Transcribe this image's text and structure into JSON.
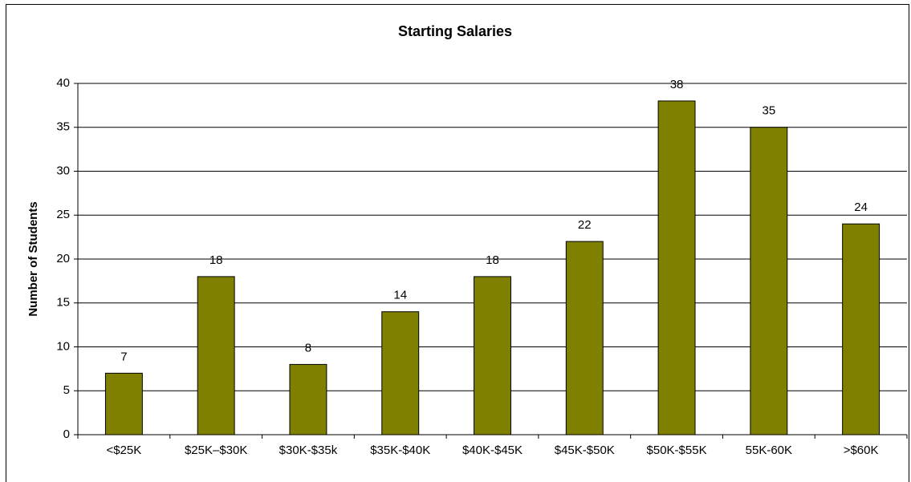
{
  "chart_data": {
    "type": "bar",
    "title": "Starting Salaries",
    "y_label": "Number of Students",
    "categories": [
      "<$25K",
      "$25K–$30K",
      "$30K-$35k",
      "$35K-$40K",
      "$40K-$45K",
      "$45K-$50K",
      "$50K-$55K",
      "55K-60K",
      ">$60K"
    ],
    "values": [
      7,
      18,
      8,
      14,
      18,
      22,
      38,
      35,
      24
    ],
    "color": "#808000",
    "ylim": [
      0,
      40
    ],
    "yticks": [
      0,
      5,
      10,
      15,
      20,
      25,
      30,
      35,
      40
    ],
    "grid": true,
    "data_labels": true
  }
}
